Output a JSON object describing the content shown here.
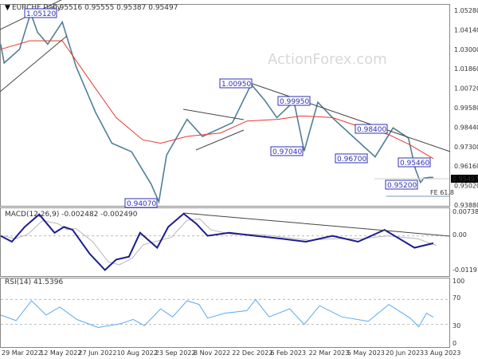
{
  "header": {
    "symbol": "EURCHF,Daily",
    "ohlc": "0.95516 0.95555 0.95387 0.95497"
  },
  "watermark": "ActionForex.com",
  "colors": {
    "price": "#4f7f99",
    "sma": "#e8382f",
    "macd": "#1c1c8f",
    "signal": "#b8b8b8",
    "rsi": "#5aaaf0",
    "label": "#3030b0",
    "current_price_bg": "#000000"
  },
  "chart_data": [
    {
      "type": "line",
      "panel": "price",
      "ylim": [
        0.9388,
        1.0528
      ],
      "yticks": [
        "1.05280",
        "1.04140",
        "1.03000",
        "1.01860",
        "1.00720",
        "0.99580",
        "0.98440",
        "0.97300",
        "0.96160",
        "0.95020",
        "0.93880"
      ],
      "current_price": "0.95497",
      "series": [
        {
          "role": "price",
          "points": [
            [
              "2022-03-28",
              1.033
            ],
            [
              "2022-04-01",
              1.022
            ],
            [
              "2022-04-19",
              1.03
            ],
            [
              "2022-05-02",
              1.0512
            ],
            [
              "2022-05-10",
              1.04
            ],
            [
              "2022-05-22",
              1.033
            ],
            [
              "2022-06-08",
              1.046
            ],
            [
              "2022-06-24",
              1.02
            ],
            [
              "2022-07-17",
              0.993
            ],
            [
              "2022-08-05",
              0.975
            ],
            [
              "2022-08-28",
              0.97
            ],
            [
              "2022-09-20",
              0.951
            ],
            [
              "2022-09-29",
              0.9407
            ],
            [
              "2022-10-08",
              0.968
            ],
            [
              "2022-11-01",
              0.989
            ],
            [
              "2022-11-19",
              0.979
            ],
            [
              "2022-12-24",
              0.987
            ],
            [
              "2023-01-15",
              1.0095
            ],
            [
              "2023-01-31",
              1.0
            ],
            [
              "2023-02-14",
              0.99
            ],
            [
              "2023-03-06",
              0.9995
            ],
            [
              "2023-03-18",
              0.9704
            ],
            [
              "2023-04-03",
              0.999
            ],
            [
              "2023-04-22",
              0.989
            ],
            [
              "2023-05-16",
              0.978
            ],
            [
              "2023-06-09",
              0.967
            ],
            [
              "2023-06-30",
              0.984
            ],
            [
              "2023-07-18",
              0.978
            ],
            [
              "2023-07-26",
              0.96
            ],
            [
              "2023-08-01",
              0.952
            ],
            [
              "2023-08-05",
              0.9546
            ],
            [
              "2023-08-12",
              0.955
            ],
            [
              "2023-08-16",
              0.95497
            ]
          ]
        },
        {
          "role": "sma",
          "points": [
            [
              "2022-03-28",
              1.03
            ],
            [
              "2022-05-01",
              1.035
            ],
            [
              "2022-06-08",
              1.035
            ],
            [
              "2022-07-10",
              1.012
            ],
            [
              "2022-08-10",
              0.99
            ],
            [
              "2022-09-10",
              0.977
            ],
            [
              "2022-10-01",
              0.975
            ],
            [
              "2022-11-01",
              0.979
            ],
            [
              "2022-12-10",
              0.981
            ],
            [
              "2023-01-10",
              0.988
            ],
            [
              "2023-02-15",
              0.989
            ],
            [
              "2023-03-15",
              0.991
            ],
            [
              "2023-04-20",
              0.99
            ],
            [
              "2023-05-20",
              0.985
            ],
            [
              "2023-06-25",
              0.98
            ],
            [
              "2023-07-20",
              0.974
            ],
            [
              "2023-08-16",
              0.966
            ]
          ]
        }
      ],
      "annotations": [
        "1.05120",
        "1.00950",
        "0.99950",
        "0.97040",
        "0.98400",
        "0.96700",
        "0.95460",
        "0.95200",
        "0.94070",
        "FE 61.8"
      ]
    },
    {
      "type": "line",
      "panel": "macd",
      "title": "MACD(12,26,9) -0.002482 -0.002490",
      "ylim": [
        -0.0119,
        0.007384
      ],
      "yticks": [
        "0.007384",
        "0.00",
        "-0.0119"
      ],
      "series": [
        {
          "role": "macd",
          "points": [
            [
              "2022-03-28",
              0.0
            ],
            [
              "2022-04-10",
              -0.002
            ],
            [
              "2022-04-25",
              0.003
            ],
            [
              "2022-05-12",
              0.0072
            ],
            [
              "2022-05-30",
              0.001
            ],
            [
              "2022-06-10",
              0.003
            ],
            [
              "2022-06-20",
              0.002
            ],
            [
              "2022-07-10",
              -0.006
            ],
            [
              "2022-07-28",
              -0.0115
            ],
            [
              "2022-08-10",
              -0.008
            ],
            [
              "2022-08-25",
              -0.007
            ],
            [
              "2022-09-07",
              0.001
            ],
            [
              "2022-09-27",
              -0.004
            ],
            [
              "2022-10-10",
              0.003
            ],
            [
              "2022-10-28",
              0.0074
            ],
            [
              "2022-11-12",
              0.004
            ],
            [
              "2022-11-25",
              0.0
            ],
            [
              "2022-12-20",
              0.001
            ],
            [
              "2023-01-20",
              0.0
            ],
            [
              "2023-02-20",
              -0.001
            ],
            [
              "2023-03-20",
              -0.002
            ],
            [
              "2023-04-20",
              0.0
            ],
            [
              "2023-05-20",
              -0.002
            ],
            [
              "2023-06-20",
              0.002
            ],
            [
              "2023-07-25",
              -0.004
            ],
            [
              "2023-08-16",
              -0.0025
            ]
          ]
        }
      ]
    },
    {
      "type": "line",
      "panel": "rsi",
      "title": "RSI(14) 41.5396",
      "ylim": [
        0,
        100
      ],
      "yticks": [
        "100",
        "70",
        "30",
        "0"
      ],
      "series": [
        {
          "role": "rsi",
          "points": [
            [
              "2022-03-28",
              45
            ],
            [
              "2022-04-15",
              36
            ],
            [
              "2022-05-03",
              68
            ],
            [
              "2022-05-20",
              45
            ],
            [
              "2022-06-05",
              58
            ],
            [
              "2022-06-25",
              38
            ],
            [
              "2022-07-20",
              25
            ],
            [
              "2022-08-15",
              31
            ],
            [
              "2022-08-30",
              38
            ],
            [
              "2022-09-12",
              28
            ],
            [
              "2022-10-01",
              55
            ],
            [
              "2022-10-15",
              42
            ],
            [
              "2022-11-01",
              68
            ],
            [
              "2022-11-15",
              62
            ],
            [
              "2022-11-25",
              40
            ],
            [
              "2022-12-15",
              48
            ],
            [
              "2023-01-10",
              52
            ],
            [
              "2023-01-20",
              70
            ],
            [
              "2023-02-05",
              42
            ],
            [
              "2023-03-01",
              55
            ],
            [
              "2023-03-18",
              30
            ],
            [
              "2023-04-05",
              60
            ],
            [
              "2023-05-01",
              42
            ],
            [
              "2023-06-01",
              35
            ],
            [
              "2023-06-25",
              62
            ],
            [
              "2023-07-20",
              40
            ],
            [
              "2023-07-30",
              26
            ],
            [
              "2023-08-08",
              48
            ],
            [
              "2023-08-16",
              41.5
            ]
          ]
        }
      ]
    }
  ],
  "xaxis": {
    "ticks": [
      "29 Mar 2022",
      "12 May 2022",
      "27 Jun 2022",
      "10 Aug 2022",
      "23 Sep 2022",
      "8 Nov 2022",
      "22 Dec 2022",
      "6 Feb 2023",
      "22 Mar 2023",
      "5 May 2023",
      "20 Jun 2023",
      "3 Aug 2023"
    ]
  }
}
